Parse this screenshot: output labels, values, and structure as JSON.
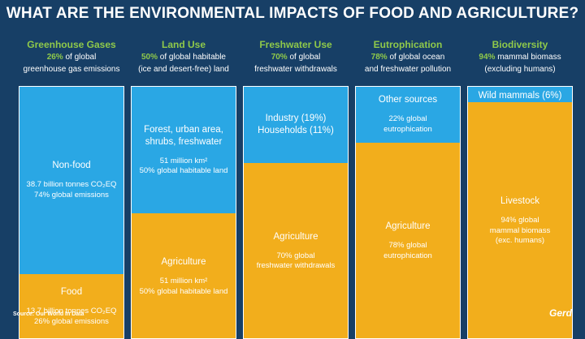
{
  "title": "WHAT ARE THE ENVIRONMENTAL IMPACTS OF FOOD AND AGRICULTURE?",
  "source": "Source: Our World In Data",
  "logo": "Gerd",
  "colors": {
    "background": "#173f66",
    "blue": "#2aa7e4",
    "gold": "#f2ae1c",
    "accent_green": "#8fc94a"
  },
  "chart_data": {
    "type": "bar",
    "stacked": true,
    "title": "WHAT ARE THE ENVIRONMENTAL IMPACTS OF FOOD AND AGRICULTURE?",
    "categories": [
      {
        "title": "Greenhouse Gases",
        "pct": "26%",
        "sub_rest": " of global",
        "sub2": "greenhouse gas emissions",
        "segments": [
          {
            "color": "blue",
            "value": 74,
            "label": "Non-food",
            "details": [
              "38.7 billion tonnes CO₂EQ",
              "74% global emissions"
            ]
          },
          {
            "color": "gold",
            "value": 26,
            "label": "Food",
            "details": [
              "13.7 billion tonnes CO₂EQ",
              "26% global emissions"
            ]
          }
        ]
      },
      {
        "title": "Land Use",
        "pct": "50%",
        "sub_rest": " of global habitable",
        "sub2": "(ice and desert-free) land",
        "segments": [
          {
            "color": "blue",
            "value": 50,
            "label": "Forest, urban area, shrubs, freshwater",
            "details": [
              "51 million km²",
              "50% global habitable land"
            ]
          },
          {
            "color": "gold",
            "value": 50,
            "label": "Agriculture",
            "details": [
              "51 million km²",
              "50% global habitable land"
            ]
          }
        ]
      },
      {
        "title": "Freshwater Use",
        "pct": "70%",
        "sub_rest": " of global",
        "sub2": "freshwater withdrawals",
        "segments": [
          {
            "color": "blue",
            "value": 30,
            "label": "Industry (19%)",
            "label2": "Households (11%)",
            "details": []
          },
          {
            "color": "gold",
            "value": 70,
            "label": "Agriculture",
            "details": [
              "70% global",
              "freshwater withdrawals"
            ]
          }
        ]
      },
      {
        "title": "Eutrophication",
        "pct": "78%",
        "sub_rest": " of global ocean",
        "sub2": "and freshwater pollution",
        "segments": [
          {
            "color": "blue",
            "value": 22,
            "label": "Other sources",
            "details": [
              "22% global",
              "eutrophication"
            ]
          },
          {
            "color": "gold",
            "value": 78,
            "label": "Agriculture",
            "details": [
              "78% global",
              "eutrophication"
            ]
          }
        ]
      },
      {
        "title": "Biodiversity",
        "pct": "94%",
        "sub_rest": " mammal biomass",
        "sub2": "(excluding humans)",
        "segments": [
          {
            "color": "blue",
            "value": 6,
            "label": "Wild mammals (6%)",
            "details": [],
            "top_align": true
          },
          {
            "color": "gold",
            "value": 94,
            "label": "Livestock",
            "details": [
              "94% global",
              "mammal biomass",
              "(exc. humans)"
            ]
          }
        ]
      }
    ]
  }
}
